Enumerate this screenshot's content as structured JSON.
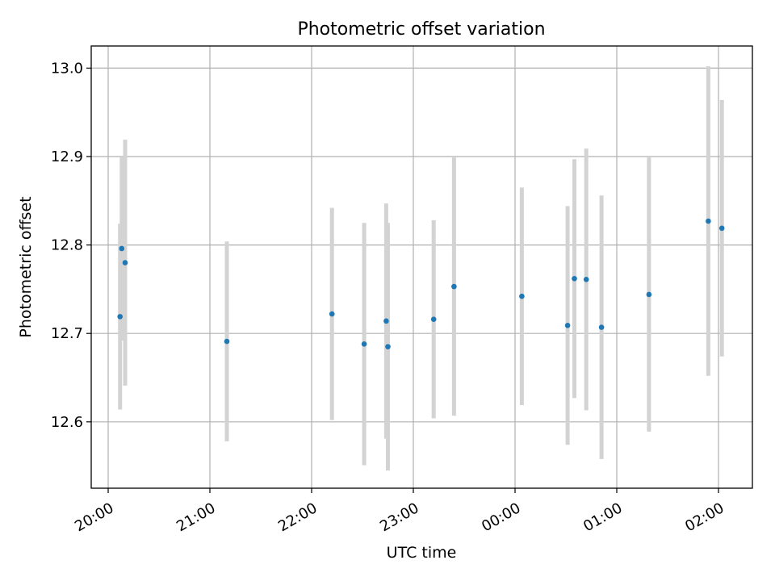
{
  "chart_data": {
    "type": "scatter",
    "title": "Photometric offset variation",
    "xlabel": "UTC time",
    "ylabel": "Photometric offset",
    "x_ticks": [
      "20:00",
      "21:00",
      "22:00",
      "23:00",
      "00:00",
      "01:00",
      "02:00"
    ],
    "y_ticks": [
      "12.6",
      "12.7",
      "12.8",
      "12.9",
      "13.0"
    ],
    "xlim": [
      "19:50",
      "02:20"
    ],
    "ylim": [
      12.525,
      13.025
    ],
    "grid": true,
    "points": [
      {
        "time": "20:07",
        "y": 12.719,
        "err": 0.105
      },
      {
        "time": "20:08",
        "y": 12.796,
        "err": 0.104
      },
      {
        "time": "20:10",
        "y": 12.78,
        "err": 0.139
      },
      {
        "time": "21:10",
        "y": 12.691,
        "err": 0.113
      },
      {
        "time": "22:12",
        "y": 12.722,
        "err": 0.12
      },
      {
        "time": "22:31",
        "y": 12.688,
        "err": 0.137
      },
      {
        "time": "22:44",
        "y": 12.714,
        "err": 0.133
      },
      {
        "time": "22:45",
        "y": 12.685,
        "err": 0.14
      },
      {
        "time": "23:12",
        "y": 12.716,
        "err": 0.112
      },
      {
        "time": "23:24",
        "y": 12.753,
        "err": 0.146
      },
      {
        "time": "00:04",
        "y": 12.742,
        "err": 0.123
      },
      {
        "time": "00:31",
        "y": 12.709,
        "err": 0.135
      },
      {
        "time": "00:35",
        "y": 12.762,
        "err": 0.135
      },
      {
        "time": "00:42",
        "y": 12.761,
        "err": 0.148
      },
      {
        "time": "00:51",
        "y": 12.707,
        "err": 0.149
      },
      {
        "time": "01:19",
        "y": 12.744,
        "err": 0.155
      },
      {
        "time": "01:54",
        "y": 12.827,
        "err": 0.175
      },
      {
        "time": "02:02",
        "y": 12.819,
        "err": 0.145
      }
    ],
    "colors": {
      "point": "#1f77b4",
      "errorbar": "#d3d3d3",
      "grid": "#b0b0b0",
      "axes": "#000000"
    }
  }
}
